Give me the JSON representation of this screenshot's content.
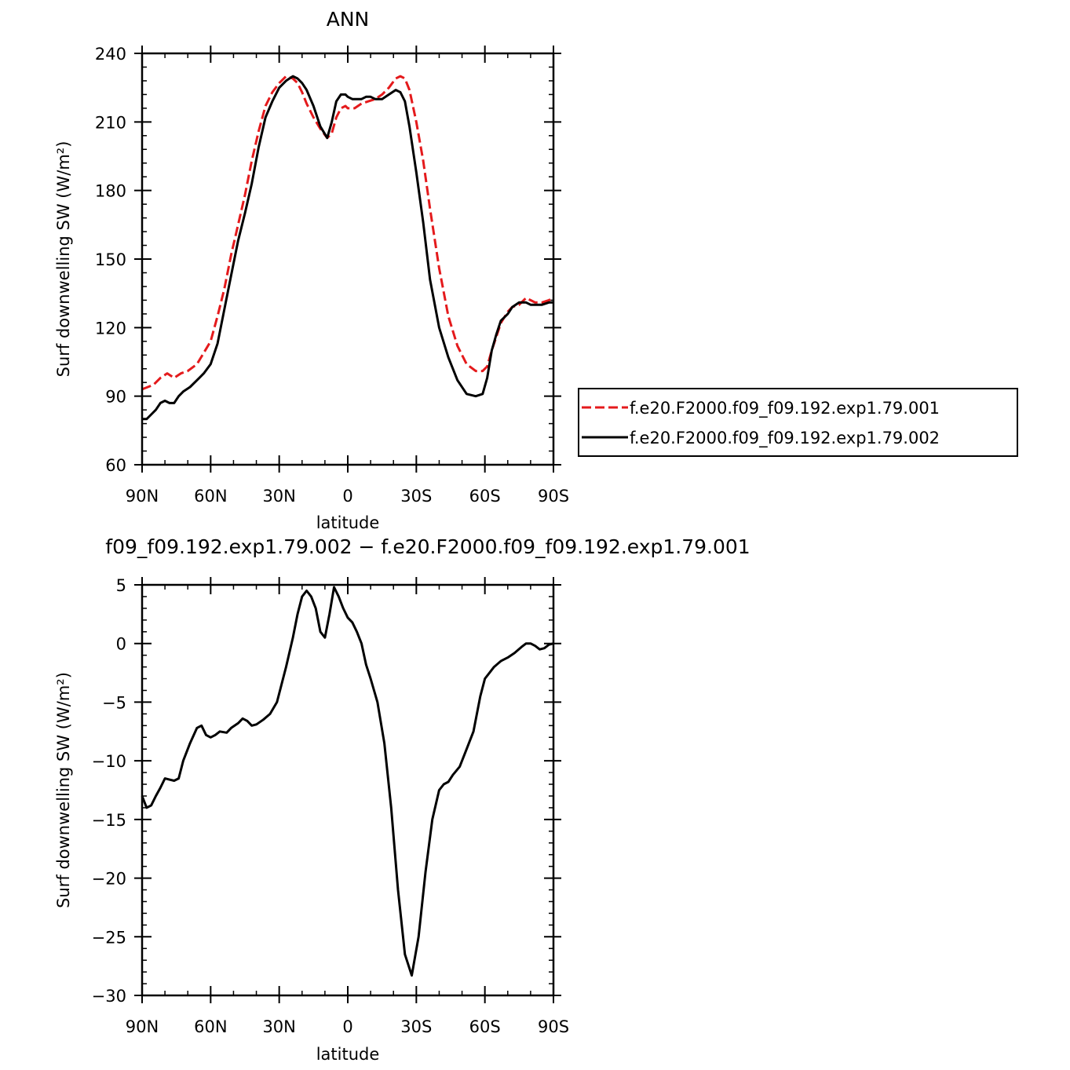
{
  "chart_data": [
    {
      "type": "line",
      "title": "ANN",
      "xlabel": "latitude",
      "ylabel": "Surf  downwelling SW (W/m²)",
      "ylim": [
        60,
        240
      ],
      "yticks": [
        60,
        90,
        120,
        150,
        180,
        210,
        240
      ],
      "xlim": [
        90,
        -90
      ],
      "xticks": [
        90,
        60,
        30,
        0,
        -30,
        -60,
        -90
      ],
      "xticklabels": [
        "90N",
        "60N",
        "30N",
        "0",
        "30S",
        "60S",
        "90S"
      ],
      "legend_position": "right",
      "series": [
        {
          "name": "f.e20.F2000.f09_f09.192.exp1.79.001",
          "color": "#e41a1c",
          "dash": "dashed",
          "x": [
            90,
            85,
            82,
            79,
            76,
            73,
            70,
            66,
            63,
            60,
            57,
            54,
            51,
            48,
            45,
            42,
            39,
            36,
            33,
            30,
            27,
            24,
            22,
            20,
            18,
            15,
            12,
            9,
            7,
            5,
            3,
            1,
            0,
            -3,
            -6,
            -9,
            -12,
            -15,
            -18,
            -21,
            -23,
            -25,
            -27,
            -30,
            -33,
            -36,
            -40,
            -44,
            -48,
            -52,
            -56,
            -59,
            -61,
            -63,
            -65,
            -67,
            -70,
            -72,
            -75,
            -78,
            -80,
            -82,
            -85,
            -88,
            -90
          ],
          "values": [
            93,
            95,
            98,
            100,
            98,
            100,
            101,
            104,
            109,
            114,
            125,
            137,
            152,
            165,
            178,
            193,
            206,
            217,
            223,
            227,
            230,
            229,
            227,
            223,
            218,
            212,
            207,
            203,
            205,
            212,
            216,
            217,
            216,
            216,
            218,
            219,
            220,
            222,
            225,
            229,
            230,
            229,
            224,
            210,
            193,
            172,
            146,
            125,
            112,
            104,
            101,
            101,
            103,
            110,
            116,
            122,
            127,
            129,
            130,
            133,
            132,
            131,
            131,
            132,
            133
          ]
        },
        {
          "name": "f.e20.F2000.f09_f09.192.exp1.79.002",
          "color": "#000000",
          "dash": "solid",
          "x": [
            90,
            88,
            86,
            84,
            82,
            80,
            78,
            76,
            74,
            72,
            69,
            66,
            63,
            60,
            57,
            54,
            51,
            48,
            45,
            42,
            39,
            36,
            33,
            30,
            27,
            24,
            22,
            20,
            18,
            15,
            12,
            9,
            7,
            5,
            3,
            1,
            0,
            -2,
            -4,
            -6,
            -8,
            -10,
            -12,
            -15,
            -18,
            -21,
            -23,
            -25,
            -27,
            -30,
            -33,
            -36,
            -40,
            -44,
            -48,
            -52,
            -56,
            -59,
            -61,
            -63,
            -65,
            -67,
            -70,
            -72,
            -75,
            -78,
            -80,
            -82,
            -85,
            -88,
            -90
          ],
          "values": [
            80,
            80,
            82,
            84,
            87,
            88,
            87,
            87,
            90,
            92,
            94,
            97,
            100,
            104,
            113,
            128,
            143,
            158,
            170,
            183,
            199,
            212,
            219,
            225,
            228,
            230,
            229,
            227,
            224,
            217,
            208,
            203,
            210,
            219,
            222,
            222,
            221,
            220,
            220,
            220,
            221,
            221,
            220,
            220,
            222,
            224,
            223,
            219,
            208,
            188,
            166,
            141,
            120,
            107,
            97,
            91,
            90,
            91,
            98,
            110,
            117,
            123,
            126,
            129,
            131,
            131,
            130,
            130,
            130,
            131,
            131
          ]
        }
      ]
    },
    {
      "type": "line",
      "title": "f09_f09.192.exp1.79.002 − f.e20.F2000.f09_f09.192.exp1.79.001",
      "xlabel": "latitude",
      "ylabel": "Surf  downwelling SW (W/m²)",
      "ylim": [
        -30,
        5
      ],
      "yticks": [
        -30,
        -25,
        -20,
        -15,
        -10,
        -5,
        0,
        5
      ],
      "yticklabels": [
        "−30",
        "−25",
        "−20",
        "−15",
        "−10",
        "−5",
        "0",
        "5"
      ],
      "xlim": [
        90,
        -90
      ],
      "xticks": [
        90,
        60,
        30,
        0,
        -30,
        -60,
        -90
      ],
      "xticklabels": [
        "90N",
        "60N",
        "30N",
        "0",
        "30S",
        "60S",
        "90S"
      ],
      "series": [
        {
          "color": "#000000",
          "dash": "solid",
          "x": [
            90,
            88,
            86,
            84,
            82,
            80,
            78,
            76,
            74,
            72,
            69,
            66,
            64,
            62,
            60,
            58,
            56,
            53,
            51,
            48,
            46,
            44,
            42,
            40,
            37,
            34,
            31,
            29,
            27,
            24,
            22,
            20,
            18,
            16,
            14,
            12,
            10,
            8,
            6,
            4,
            2,
            0,
            -2,
            -4,
            -6,
            -8,
            -10,
            -13,
            -16,
            -19,
            -22,
            -25,
            -28,
            -31,
            -34,
            -37,
            -40,
            -42,
            -44,
            -46,
            -49,
            -52,
            -55,
            -58,
            -60,
            -62,
            -64,
            -67,
            -70,
            -73,
            -76,
            -78,
            -80,
            -82,
            -84,
            -86,
            -88,
            -90
          ],
          "values": [
            -13,
            -14,
            -13.8,
            -13,
            -12.3,
            -11.5,
            -11.6,
            -11.7,
            -11.5,
            -10,
            -8.5,
            -7.2,
            -7,
            -7.8,
            -8,
            -7.8,
            -7.5,
            -7.6,
            -7.2,
            -6.8,
            -6.4,
            -6.6,
            -7,
            -6.9,
            -6.5,
            -6,
            -5,
            -3.5,
            -2,
            0.5,
            2.5,
            4,
            4.5,
            4,
            3,
            1,
            0.5,
            2.5,
            4.8,
            4,
            3,
            2.2,
            1.8,
            1,
            0,
            -1.8,
            -3,
            -5,
            -8.5,
            -14,
            -21,
            -26.5,
            -28.3,
            -25,
            -19.5,
            -15,
            -12.5,
            -12,
            -11.8,
            -11.2,
            -10.5,
            -9,
            -7.5,
            -4.5,
            -3,
            -2.5,
            -2,
            -1.5,
            -1.2,
            -0.8,
            -0.3,
            0,
            0,
            -0.2,
            -0.5,
            -0.4,
            -0.1,
            0
          ]
        }
      ]
    }
  ]
}
